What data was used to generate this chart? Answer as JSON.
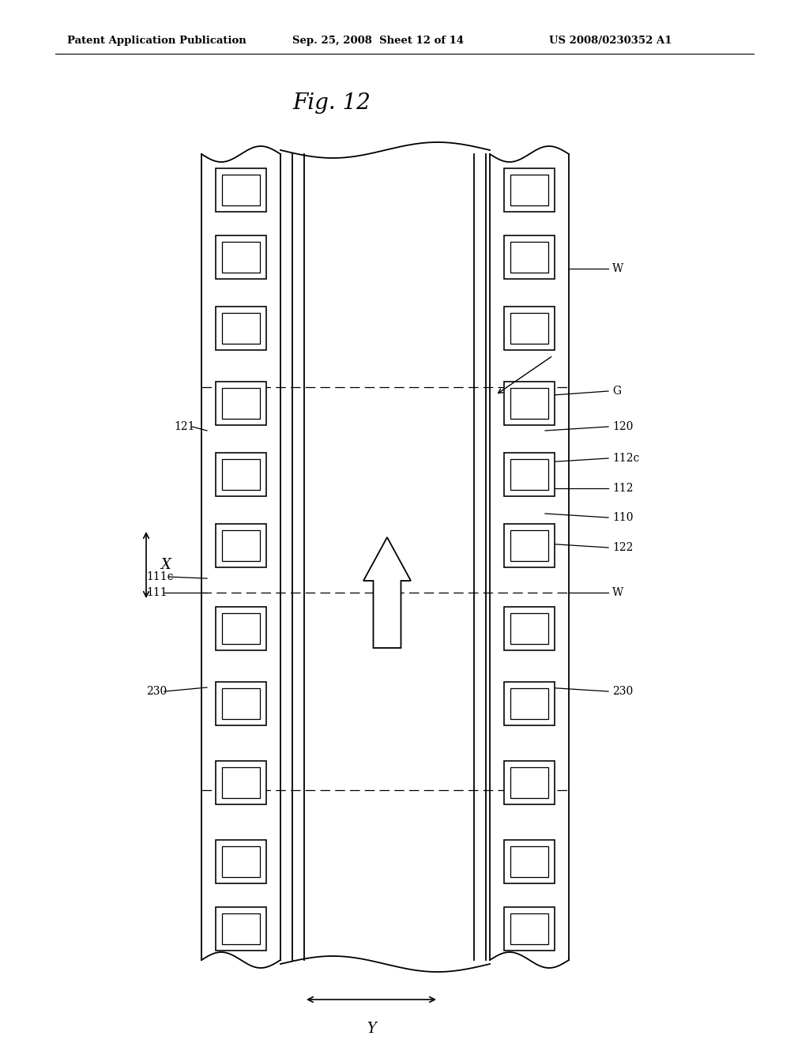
{
  "bg_color": "#ffffff",
  "title_header": "Patent Application Publication",
  "title_date": "Sep. 25, 2008  Sheet 12 of 14",
  "title_patent": "US 2008/0230352 A1",
  "fig_label": "Fig. 12",
  "line_color": "#000000",
  "lw": 1.3
}
